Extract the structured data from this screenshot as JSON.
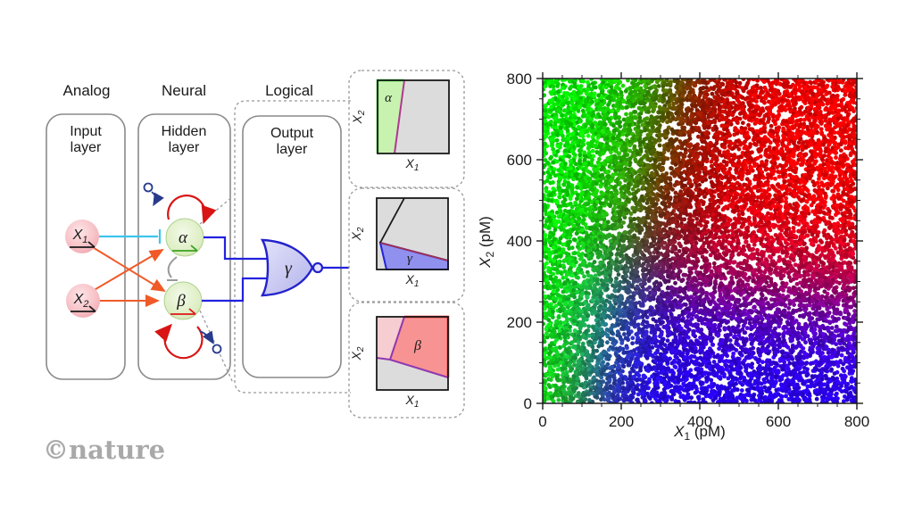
{
  "watermark": "©nature",
  "diagram": {
    "column_headers": [
      "Analog",
      "Neural",
      "Logical"
    ],
    "layers": [
      {
        "line1": "Input",
        "line2": "layer"
      },
      {
        "line1": "Hidden",
        "line2": "layer"
      },
      {
        "line1": "Output",
        "line2": "layer"
      }
    ],
    "nodes": {
      "x1": {
        "base": "X",
        "sub": "1"
      },
      "x2": {
        "base": "X",
        "sub": "2"
      },
      "alpha": "α",
      "beta": "β",
      "gamma": "γ"
    },
    "colors": {
      "alpha_green": "#2f9e1e",
      "beta_red": "#e01818",
      "gamma_blue": "#2222cc",
      "excitatory_orange": "#f05a28",
      "inhibitory_cyan": "#3cc6ee",
      "self_loop_red": "#d81414",
      "annihilator_navy": "#283a8c",
      "inhibit_grey": "#999999",
      "node_pink": "#f3aab2",
      "node_green": "#cde8ab"
    }
  },
  "insets": [
    {
      "region": "α",
      "xaxis": {
        "base": "X",
        "sub": "1"
      },
      "yaxis": {
        "base": "X",
        "sub": "2"
      }
    },
    {
      "region": "γ",
      "xaxis": {
        "base": "X",
        "sub": "1"
      },
      "yaxis": {
        "base": "X",
        "sub": "2"
      }
    },
    {
      "region": "β",
      "xaxis": {
        "base": "X",
        "sub": "1"
      },
      "yaxis": {
        "base": "X",
        "sub": "2"
      }
    }
  ],
  "chart_data": {
    "type": "scatter",
    "title": "",
    "xlabel": {
      "base": "X",
      "sub": "1",
      "rest": " (pM)"
    },
    "ylabel": {
      "base": "X",
      "sub": "2",
      "rest": " (pM)"
    },
    "xlim": [
      0,
      800
    ],
    "ylim": [
      0,
      800
    ],
    "x_ticks": [
      0,
      200,
      400,
      600,
      800
    ],
    "y_ticks": [
      0,
      200,
      400,
      600,
      800
    ],
    "minor_per_major": 3,
    "frame": true,
    "n_points": 12000,
    "seed": 987654321,
    "dot_radius": 2.4,
    "color_model": {
      "note": "each dot RGB = (beta, alpha, gamma) neuron activations at (X1,X2)",
      "alpha": {
        "x1_threshold_base": 110,
        "x1_threshold_per_x2": 0.25,
        "softness": 55
      },
      "beta": {
        "x1_threshold_base": 200,
        "x1_threshold_per_x2": 0.22,
        "softness": 80,
        "gamma_suppression": 0.85
      },
      "gamma": {
        "x2_threshold_base": 320,
        "x2_threshold_per_x1": -0.08,
        "softness": 70,
        "x1_onset": 130,
        "x1_onset_softness": 55
      },
      "channel_scale": {
        "r": 240,
        "g": 228,
        "b": 242
      },
      "brightness_jitter": [
        0.82,
        1.18
      ]
    }
  }
}
